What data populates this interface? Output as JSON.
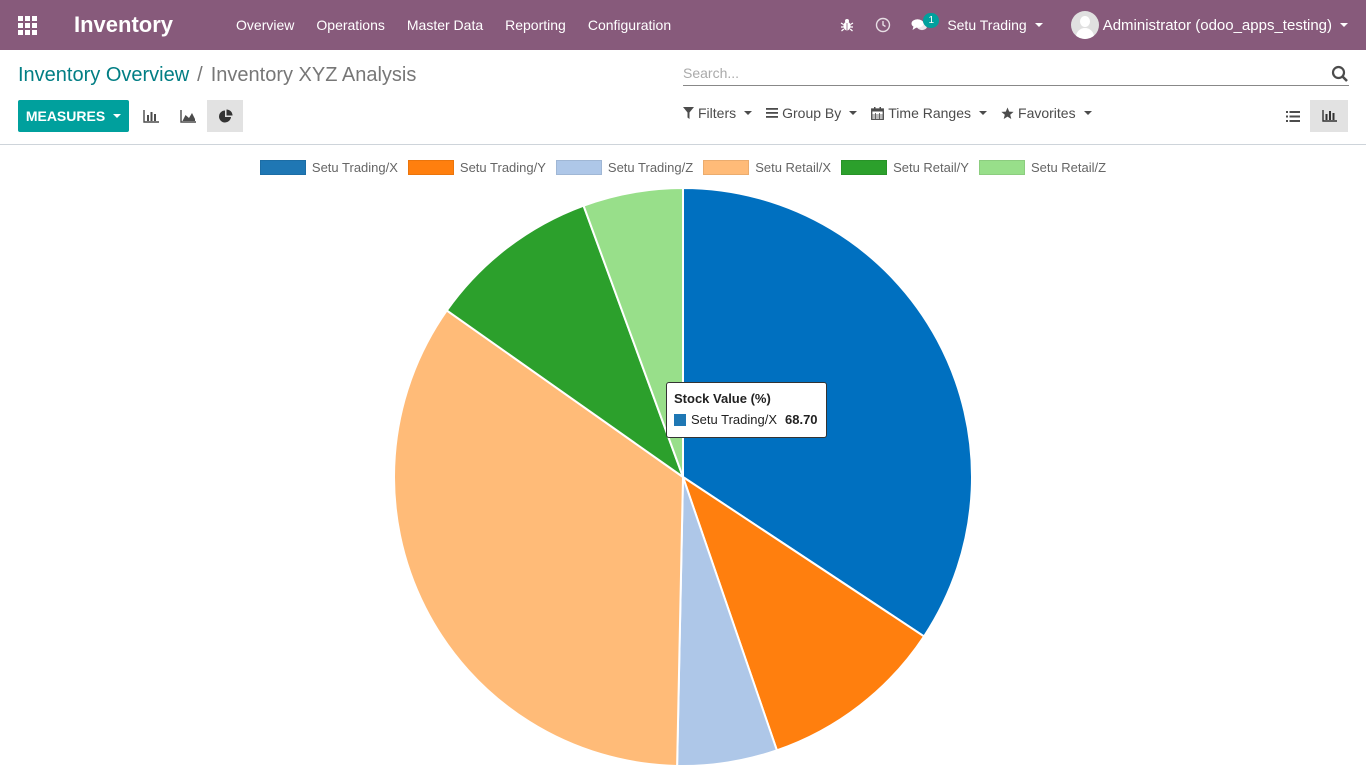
{
  "navbar": {
    "app_title": "Inventory",
    "menu": [
      "Overview",
      "Operations",
      "Master Data",
      "Reporting",
      "Configuration"
    ],
    "messages_badge": "1",
    "company": "Setu Trading",
    "user": "Administrator (odoo_apps_testing)",
    "colors": {
      "bar": "#875a7b",
      "badge": "#00a09d"
    }
  },
  "control_panel": {
    "breadcrumb": {
      "parent": "Inventory Overview",
      "separator": "/",
      "current": "Inventory XYZ Analysis"
    },
    "search": {
      "placeholder": "Search..."
    },
    "measures_label": "MEASURES",
    "view_icons": [
      "bar-chart-icon",
      "line-chart-icon",
      "pie-chart-icon"
    ],
    "filters": {
      "filters": "Filters",
      "group_by": "Group By",
      "time_ranges": "Time Ranges",
      "favorites": "Favorites"
    },
    "view_switch": [
      "list-view-icon",
      "graph-view-icon"
    ]
  },
  "chart_data": {
    "type": "pie",
    "categories": [
      "Setu Trading/X",
      "Setu Trading/Y",
      "Setu Trading/Z",
      "Setu Retail/X",
      "Setu Retail/Y",
      "Setu Retail/Z"
    ],
    "values": [
      68.7,
      20.9,
      11.2,
      69.0,
      19.3,
      11.2
    ],
    "colors": [
      "#0070c0",
      "#ff7f0e",
      "#aec7e8",
      "#ffbb78",
      "#2ca02c",
      "#98df8a"
    ],
    "legend_colors": [
      "#1f77b4",
      "#ff7f0e",
      "#aec7e8",
      "#ffbb78",
      "#2ca02c",
      "#98df8a"
    ],
    "legend_position": "top",
    "tooltip": {
      "title": "Stock Value (%)",
      "label": "Setu Trading/X",
      "value": "68.70"
    }
  }
}
